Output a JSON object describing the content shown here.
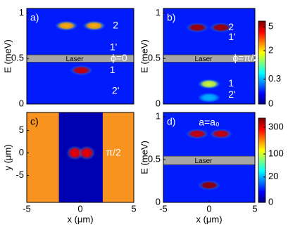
{
  "chart_data": [
    {
      "type": "heatmap",
      "panel_label": "a)",
      "ylabel": "E (meV)",
      "xlim": [
        -5,
        5
      ],
      "ylim": [
        0,
        1.05
      ],
      "yticks": [
        0,
        0.5,
        1
      ],
      "clim": [
        0,
        6
      ],
      "power": 0.4,
      "laser": {
        "label": "Laser",
        "ylim": [
          0.46,
          0.54
        ]
      },
      "spots": [
        {
          "x": -1.3,
          "y": 0.86,
          "value": 2.5
        },
        {
          "x": 1.3,
          "y": 0.86,
          "value": 2.5
        },
        {
          "x": 0.1,
          "y": 0.37,
          "value": 5
        }
      ],
      "annotations": [
        {
          "text": "2",
          "x": 3.3,
          "y": 0.86
        },
        {
          "text": "1'",
          "x": 3.1,
          "y": 0.62
        },
        {
          "text": "ϕ=0",
          "x": 3.6,
          "y": 0.5
        },
        {
          "text": "1",
          "x": 3.0,
          "y": 0.37
        },
        {
          "text": "2'",
          "x": 3.3,
          "y": 0.14
        }
      ]
    },
    {
      "type": "heatmap",
      "panel_label": "b)",
      "ylabel": "E (meV)",
      "xlim": [
        -5,
        5
      ],
      "ylim": [
        0,
        1.05
      ],
      "yticks": [
        0,
        0.5,
        1
      ],
      "clim": [
        0,
        6
      ],
      "power": 0.4,
      "colorbar": {
        "ticks": [
          0,
          0.3,
          2,
          5
        ]
      },
      "laser": {
        "label": "Laser",
        "ylim": [
          0.46,
          0.54
        ]
      },
      "spots": [
        {
          "x": -1.3,
          "y": 0.84,
          "value": 5.5
        },
        {
          "x": 1.3,
          "y": 0.84,
          "value": 5.5
        },
        {
          "x": 0,
          "y": 0.22,
          "value": 1.5
        },
        {
          "x": 0,
          "y": 0.07,
          "value": 0.3
        }
      ],
      "annotations": [
        {
          "text": "2",
          "x": 2.4,
          "y": 0.84
        },
        {
          "text": "1'",
          "x": 2.5,
          "y": 0.73
        },
        {
          "text": "ϕ=π/2",
          "x": 4.0,
          "y": 0.5
        },
        {
          "text": "1",
          "x": 2.4,
          "y": 0.22
        },
        {
          "text": "2'",
          "x": 2.5,
          "y": 0.1
        }
      ]
    },
    {
      "type": "heatmap",
      "panel_label": "c)",
      "ylabel": "y (μm)",
      "xlabel": "x (μm)",
      "xlim": [
        -5,
        5
      ],
      "ylim": [
        -11,
        9
      ],
      "xticks": [
        -5,
        0,
        5
      ],
      "yticks": [
        -5,
        0,
        5
      ],
      "clim": [
        0,
        6
      ],
      "power": 0.4,
      "background": "#f7931e",
      "channel_edges": [
        -2,
        2.1
      ],
      "spots": [
        {
          "x": -0.5,
          "y": 0,
          "value": 4.5
        },
        {
          "x": 0.6,
          "y": 0,
          "value": 4.5
        }
      ],
      "annotations": [
        {
          "text": "π/2",
          "x": 3.1,
          "y": 0
        }
      ]
    },
    {
      "type": "heatmap",
      "panel_label": "d)",
      "ylabel": "E (meV)",
      "xlabel": "x (μm)",
      "xlim": [
        -5,
        5
      ],
      "ylim": [
        0,
        1.05
      ],
      "xticks": [
        -5,
        0,
        5
      ],
      "yticks": [
        0,
        0.5,
        1
      ],
      "clim": [
        0,
        400
      ],
      "power": 0.4,
      "colorbar": {
        "ticks": [
          0,
          20,
          100,
          300
        ]
      },
      "laser": {
        "label": "Laser",
        "ylim": [
          0.44,
          0.54
        ]
      },
      "spots": [
        {
          "x": -1.3,
          "y": 0.8,
          "value": 330
        },
        {
          "x": 1.3,
          "y": 0.8,
          "value": 330
        },
        {
          "x": 0,
          "y": 0.2,
          "value": 380
        }
      ],
      "annotations": [
        {
          "text": "a=a₀",
          "x": 0,
          "y": 0.93
        }
      ]
    }
  ]
}
